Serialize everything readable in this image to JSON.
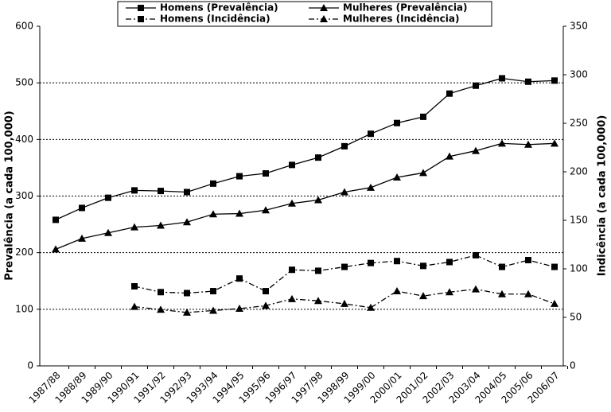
{
  "chart_data": {
    "type": "line",
    "categories": [
      "1987/88",
      "1988/89",
      "1989/90",
      "1990/91",
      "1991/92",
      "1992/93",
      "1993/94",
      "1994/95",
      "1995/96",
      "1996/97",
      "1997/98",
      "1998/99",
      "1999/00",
      "2000/01",
      "2001/02",
      "2002/03",
      "2003/04",
      "2004/05",
      "2005/06",
      "2006/07"
    ],
    "y_label": "Prevalência (a cada 100,000)",
    "y2_label": "Indicência (a cada 100,000)",
    "ylim": [
      0,
      600
    ],
    "yticks": [
      0,
      100,
      200,
      300,
      400,
      500,
      600
    ],
    "y2lim": [
      0,
      350
    ],
    "y2ticks": [
      0,
      50,
      100,
      150,
      200,
      250,
      300,
      350
    ],
    "grid": true,
    "legend": "top",
    "series": [
      {
        "name": "Homens (Prevalência)",
        "color": "#000000",
        "marker": "square",
        "dash": "solid",
        "values": [
          258,
          279,
          297,
          310,
          309,
          307,
          322,
          335,
          340,
          355,
          368,
          388,
          410,
          429,
          440,
          481,
          495,
          508,
          502,
          504
        ]
      },
      {
        "name": "Mulheres (Prevalência)",
        "color": "#000000",
        "marker": "triangle",
        "dash": "solid",
        "values": [
          206,
          225,
          235,
          245,
          248,
          254,
          268,
          269,
          275,
          287,
          293,
          307,
          315,
          333,
          341,
          370,
          380,
          393,
          391,
          393
        ]
      },
      {
        "name": "Homens (Incidência)",
        "color": "#000000",
        "marker": "square",
        "dash": "dashdot",
        "axis": "y2",
        "values": [
          null,
          null,
          null,
          82,
          76,
          75,
          77,
          90,
          77,
          99,
          98,
          102,
          106,
          108,
          103,
          107,
          114,
          102,
          109,
          102
        ]
      },
      {
        "name": "Mulheres (Incidência)",
        "color": "#000000",
        "marker": "triangle",
        "dash": "dashdot",
        "axis": "y2",
        "values": [
          null,
          null,
          null,
          61,
          58,
          55,
          57,
          59,
          62,
          69,
          67,
          64,
          60,
          77,
          72,
          76,
          79,
          74,
          74,
          64
        ]
      }
    ]
  }
}
